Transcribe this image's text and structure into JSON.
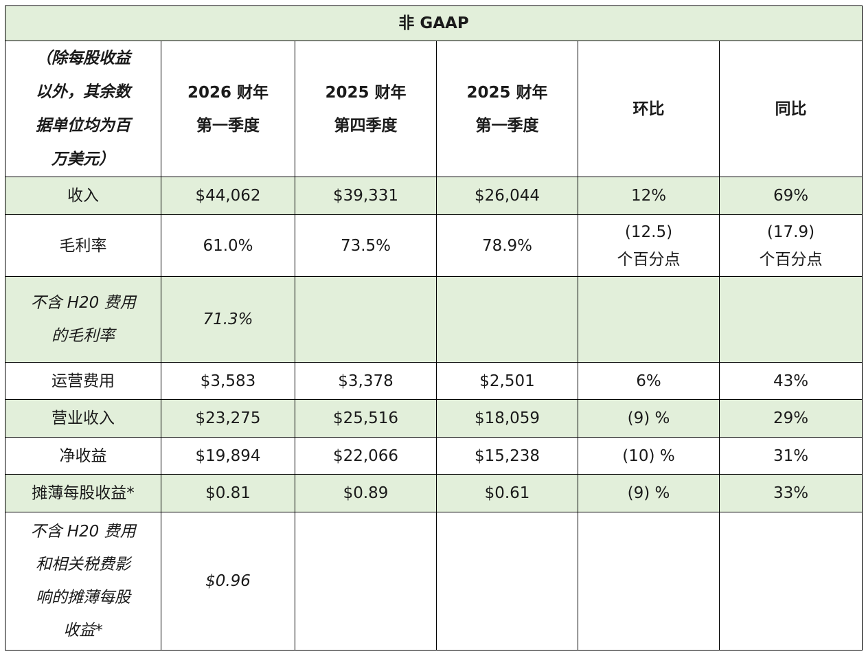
{
  "table": {
    "title": "非 GAAP",
    "headers": [
      "（除每股收益以外，其余数据单位均为百万美元）",
      "2026 财年第一季度",
      "2025 财年第四季度",
      "2025 财年第一季度",
      "环比",
      "同比"
    ],
    "header_lines": [
      [
        "（除每股收益",
        "以外，其余数",
        "据单位均为百",
        "万美元）"
      ],
      [
        "2026 财年",
        "第一季度"
      ],
      [
        "2025 财年",
        "第四季度"
      ],
      [
        "2025 财年",
        "第一季度"
      ],
      [
        "环比"
      ],
      [
        "同比"
      ]
    ],
    "rows": {
      "revenue": {
        "label": "收入",
        "q1fy26": "$44,062",
        "q4fy25": "$39,331",
        "q1fy25": "$26,044",
        "qoq": "12%",
        "yoy": "69%"
      },
      "gross_margin": {
        "label": "毛利率",
        "q1fy26": "61.0%",
        "q4fy25": "73.5%",
        "q1fy25": "78.9%",
        "qoq_lines": [
          "(12.5)",
          "个百分点"
        ],
        "yoy_lines": [
          "(17.9)",
          "个百分点"
        ]
      },
      "gross_margin_ex_h20": {
        "label_lines": [
          "不含 H20 费用",
          "的毛利率"
        ],
        "q1fy26": "71.3%"
      },
      "opex": {
        "label": "运营费用",
        "q1fy26": "$3,583",
        "q4fy25": "$3,378",
        "q1fy25": "$2,501",
        "qoq": "6%",
        "yoy": "43%"
      },
      "operating_income": {
        "label": "营业收入",
        "q1fy26": "$23,275",
        "q4fy25": "$25,516",
        "q1fy25": "$18,059",
        "qoq": "(9) %",
        "yoy": "29%"
      },
      "net_income": {
        "label": "净收益",
        "q1fy26": "$19,894",
        "q4fy25": "$22,066",
        "q1fy25": "$15,238",
        "qoq": "(10) %",
        "yoy": "31%"
      },
      "diluted_eps": {
        "label": "摊薄每股收益*",
        "q1fy26": "$0.81",
        "q4fy25": "$0.89",
        "q1fy25": "$0.61",
        "qoq": "(9) %",
        "yoy": "33%"
      },
      "diluted_eps_ex_h20": {
        "label_lines": [
          "不含 H20 费用",
          "和相关税费影",
          "响的摊薄每股",
          "收益*"
        ],
        "q1fy26": "$0.96"
      }
    }
  },
  "colors": {
    "header_green": "#e2efda",
    "border": "#000000"
  }
}
